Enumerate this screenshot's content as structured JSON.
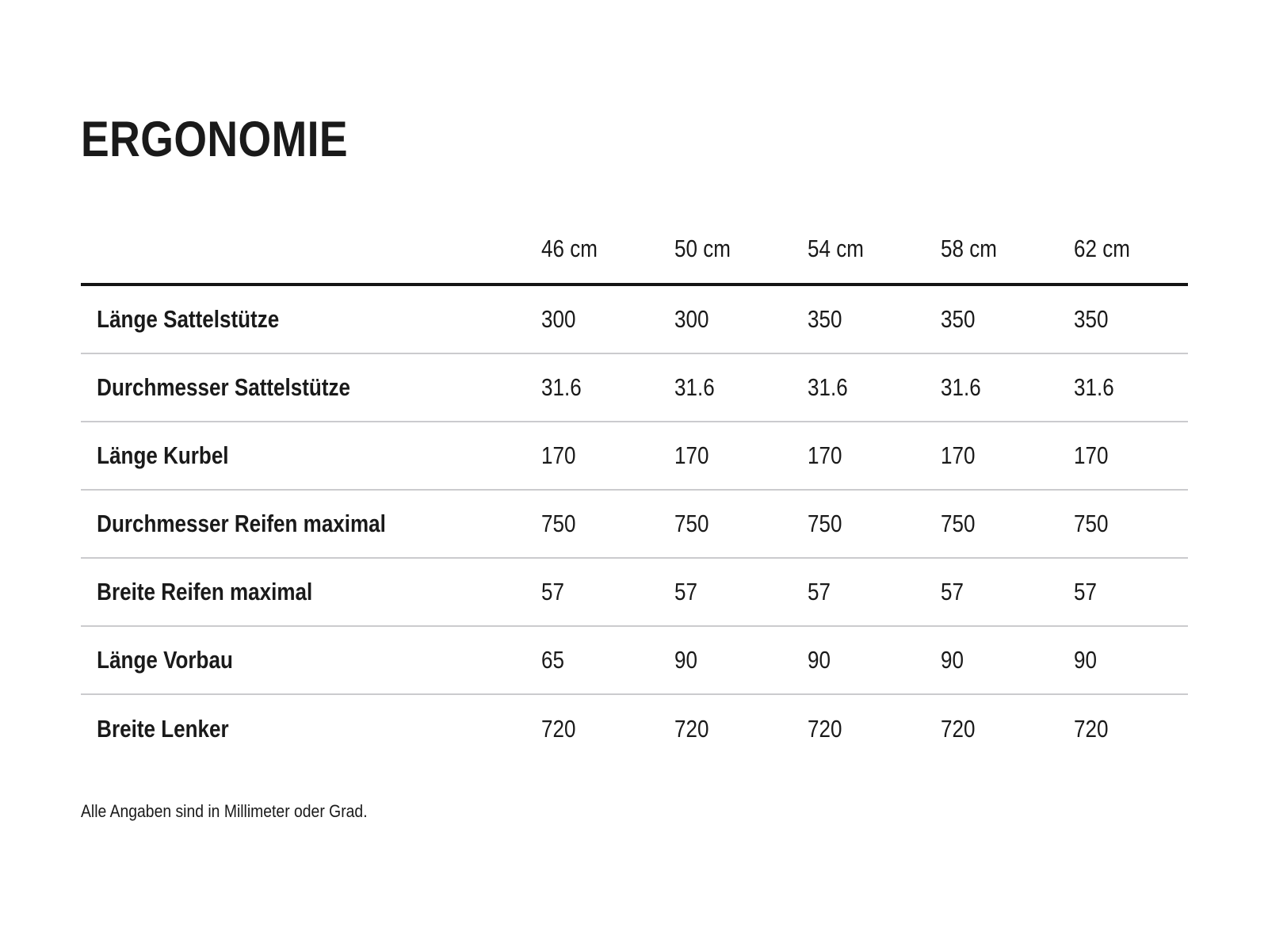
{
  "page": {
    "title": "ERGONOMIE",
    "note": "Alle Angaben sind in Millimeter oder Grad."
  },
  "chart_data": {
    "type": "table",
    "title": "ERGONOMIE",
    "columns": [
      "46 cm",
      "50 cm",
      "54 cm",
      "58 cm",
      "62 cm"
    ],
    "rows": [
      {
        "label": "Länge Sattelstütze",
        "values": [
          "300",
          "300",
          "350",
          "350",
          "350"
        ]
      },
      {
        "label": "Durchmesser Sattelstütze",
        "values": [
          "31.6",
          "31.6",
          "31.6",
          "31.6",
          "31.6"
        ]
      },
      {
        "label": "Länge Kurbel",
        "values": [
          "170",
          "170",
          "170",
          "170",
          "170"
        ]
      },
      {
        "label": "Durchmesser Reifen maximal",
        "values": [
          "750",
          "750",
          "750",
          "750",
          "750"
        ]
      },
      {
        "label": "Breite Reifen maximal",
        "values": [
          "57",
          "57",
          "57",
          "57",
          "57"
        ]
      },
      {
        "label": "Länge Vorbau",
        "values": [
          "65",
          "90",
          "90",
          "90",
          "90"
        ]
      },
      {
        "label": "Breite Lenker",
        "values": [
          "720",
          "720",
          "720",
          "720",
          "720"
        ]
      }
    ],
    "note": "Alle Angaben sind in Millimeter oder Grad.",
    "layout": {
      "legend": "none",
      "grid": "horizontal-rules-only",
      "value_alignment": "left"
    },
    "colors": {
      "text": "#1a1a1a",
      "header_rule": "#141414",
      "row_rule": "#cbcbce",
      "background": "#ffffff"
    }
  }
}
